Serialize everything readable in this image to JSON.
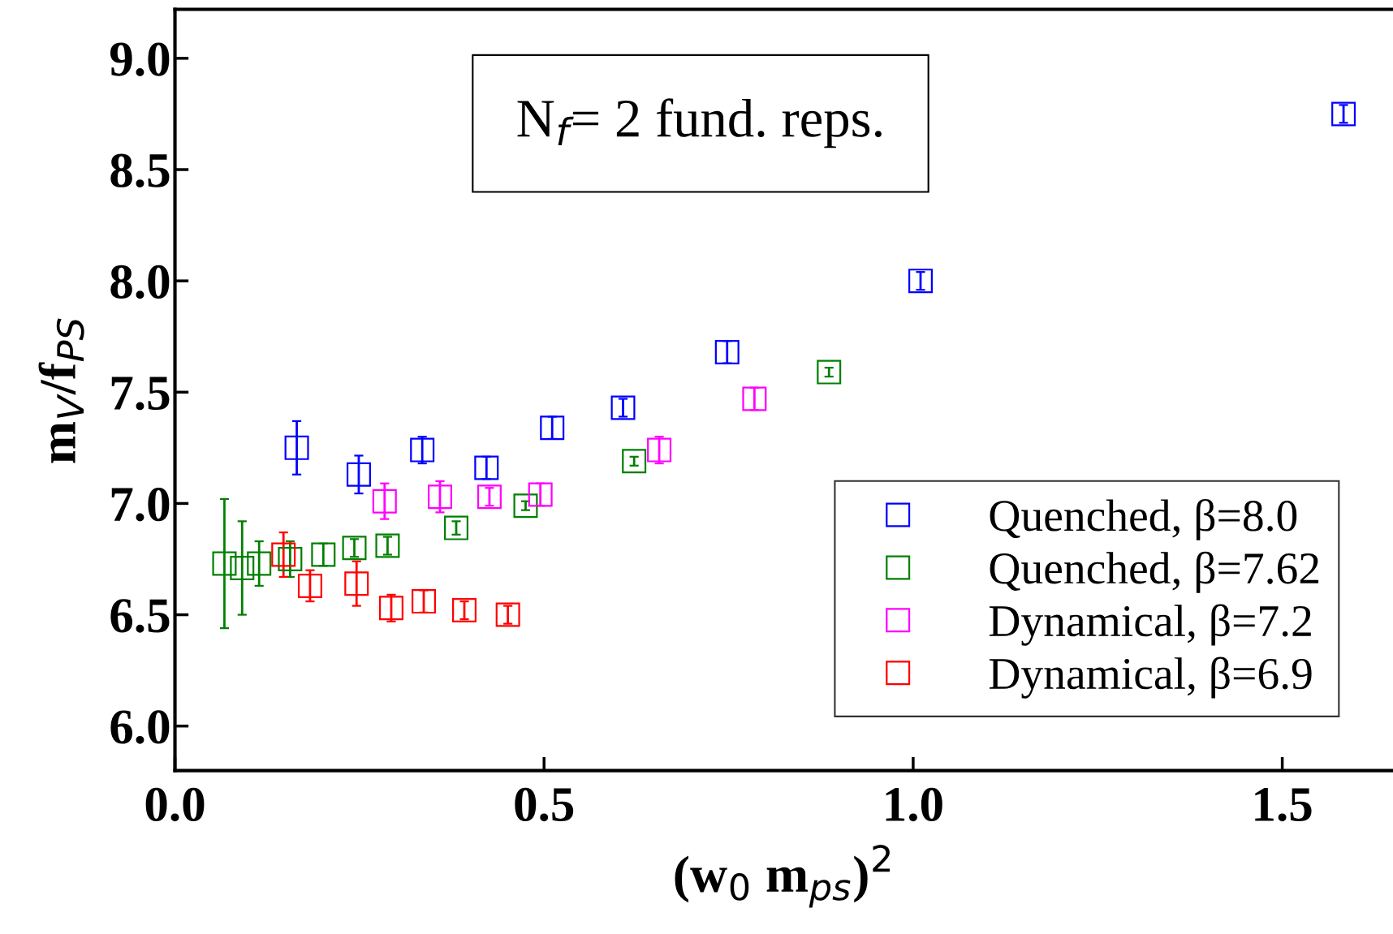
{
  "chart_data": {
    "type": "scatter",
    "xlabel": "(w$_{0}$ m$_{ps}$)$^{2}$",
    "ylabel": "m$_{V}$/f$_{PS}$",
    "annotations": [
      "N$_{f}$= 2 fund. reps."
    ],
    "xlim": [
      0,
      1.65
    ],
    "xticks": [
      {
        "value": 0,
        "label": "0.0"
      },
      0.5,
      {
        "value": 1,
        "label": "1.0"
      },
      1.5
    ],
    "ylim": [
      5.8,
      9.22
    ],
    "yticks": [
      {
        "value": 6,
        "label": "6.0"
      },
      6.5,
      {
        "value": 7,
        "label": "7.0"
      },
      7.5,
      {
        "value": 8,
        "label": "8.0"
      },
      8.5,
      {
        "value": 9,
        "label": "9.0"
      }
    ],
    "marker": "square",
    "legend": "bottom right",
    "grid": false,
    "series": [
      {
        "name": "Quenched, β=8.0",
        "color": "#0000ff",
        "x": [
          0.165,
          0.249,
          0.335,
          0.422,
          0.511,
          0.607,
          0.748,
          1.01,
          1.583
        ],
        "values": [
          7.25,
          7.13,
          7.24,
          7.16,
          7.34,
          7.43,
          7.68,
          8.0,
          8.75
        ],
        "errors": [
          0.12,
          0.085,
          0.06,
          0.05,
          0.05,
          0.04,
          0.05,
          0.04,
          0.04
        ]
      },
      {
        "name": "Quenched, β=7.62",
        "color": "#008000",
        "x": [
          0.067,
          0.091,
          0.114,
          0.156,
          0.201,
          0.243,
          0.288,
          0.381,
          0.475,
          0.622,
          0.886
        ],
        "values": [
          6.73,
          6.71,
          6.73,
          6.75,
          6.77,
          6.8,
          6.81,
          6.89,
          6.99,
          7.19,
          7.59
        ],
        "errors": [
          0.29,
          0.21,
          0.1,
          0.08,
          0.05,
          0.04,
          0.04,
          0.03,
          0.02,
          0.02,
          0.02
        ]
      },
      {
        "name": "Dynamical, β=7.2",
        "color": "#ff00ff",
        "x": [
          0.284,
          0.359,
          0.426,
          0.495,
          0.656,
          0.785
        ],
        "values": [
          7.01,
          7.03,
          7.03,
          7.04,
          7.24,
          7.47
        ],
        "errors": [
          0.08,
          0.07,
          0.04,
          0.05,
          0.06,
          0.05
        ]
      },
      {
        "name": "Dynamical, β=6.9",
        "color": "#ff0000",
        "x": [
          0.147,
          0.183,
          0.246,
          0.293,
          0.337,
          0.392,
          0.451
        ],
        "values": [
          6.77,
          6.63,
          6.64,
          6.53,
          6.56,
          6.52,
          6.5
        ],
        "errors": [
          0.1,
          0.07,
          0.1,
          0.06,
          0.05,
          0.04,
          0.04
        ]
      }
    ]
  }
}
